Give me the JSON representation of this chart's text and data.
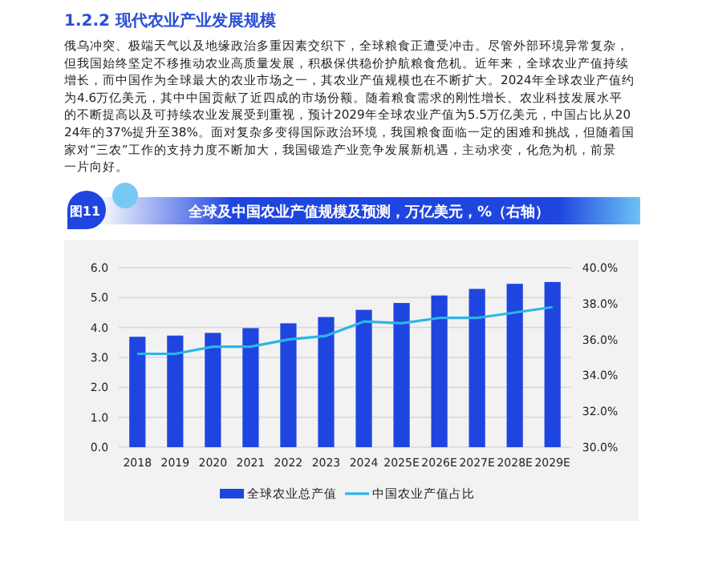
{
  "chart_data": {
    "type": "bar",
    "title": "全球及中国农业产值规模及预测，万亿美元，%（右轴）",
    "annotations": [
      "1.2.2 现代农业产业发展规模",
      "俄乌冲突、极端天气以及地缘政治多重因素交织下，全球粮食正遭受冲击。尽管外部环境异常复杂，但我国始终坚定不移推动农业高质量发展，积极保供稳价护航粮食危机。近年来，全球农业产值持续增长，而中国作为全球最大的农业市场之一，其农业产值规模也在不断扩大。2024年全球农业产值约为4.6万亿美元，其中中国贡献了近四成的市场份额。随着粮食需求的刚性增长、农业科技发展水平的不断提高以及可持续农业发展受到重视，预计2029年全球农业产值为5.5万亿美元，中国占比从2024年的37%提升至38%。面对复杂多变得国际政治环境，我国粮食面临一定的困难和挑战，但随着国家对“三农”工作的支持力度不断加大，我国锻造产业竞争发展新机遇，主动求变，化危为机，前景一片向好。",
      "图11"
    ],
    "categories": [
      "2018",
      "2019",
      "2020",
      "2021",
      "2022",
      "2023",
      "2024",
      "2025E",
      "2026E",
      "2027E",
      "2028E",
      "2029E"
    ],
    "series": [
      {
        "name": "全球农业总产值",
        "color": "#1f45e0",
        "values": [
          3.69,
          3.73,
          3.82,
          3.98,
          4.14,
          4.35,
          4.59,
          4.82,
          5.07,
          5.29,
          5.46,
          5.52
        ]
      },
      {
        "name": "中国农业产值占比",
        "type": "line",
        "axis": "y2",
        "color": "#2bb5e8",
        "values": [
          35.2,
          35.2,
          35.6,
          35.6,
          36.0,
          36.2,
          37.0,
          36.9,
          37.2,
          37.2,
          37.5,
          37.8
        ]
      }
    ],
    "ylim": [
      0,
      6
    ],
    "yticks": [
      {
        "value": 0,
        "label": "0.0"
      },
      {
        "value": 1,
        "label": "1.0"
      },
      {
        "value": 2,
        "label": "2.0"
      },
      {
        "value": 3,
        "label": "3.0"
      },
      {
        "value": 4,
        "label": "4.0"
      },
      {
        "value": 5,
        "label": "5.0"
      },
      {
        "value": 6,
        "label": "6.0"
      }
    ],
    "y2lim": [
      30,
      40
    ],
    "y2ticks": [
      {
        "value": 30,
        "label": "30.0%"
      },
      {
        "value": 32,
        "label": "32.0%"
      },
      {
        "value": 34,
        "label": "34.0%"
      },
      {
        "value": 36,
        "label": "36.0%"
      },
      {
        "value": 38,
        "label": "38.0%"
      },
      {
        "value": 40,
        "label": "40.0%"
      }
    ],
    "grid": "y",
    "legend": "bottom",
    "marker": "none",
    "line_style": "solid"
  }
}
